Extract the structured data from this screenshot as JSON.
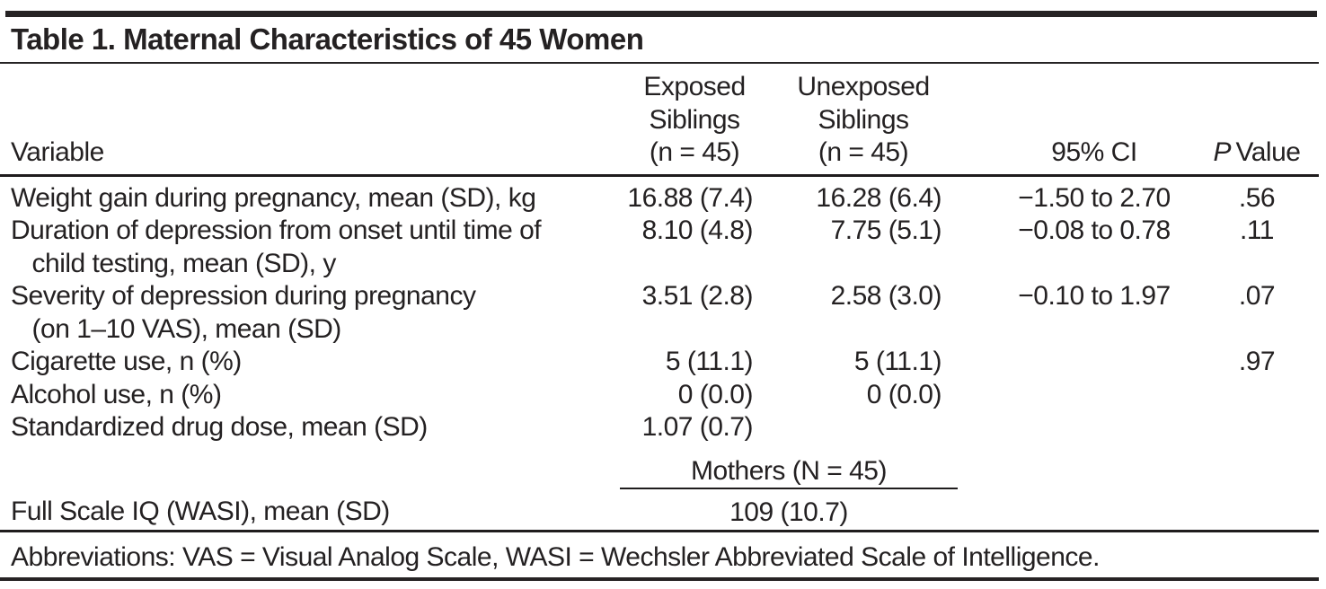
{
  "meta": {
    "title": "Table 1. Maternal Characteristics of 45 Women"
  },
  "colors": {
    "background": "#ffffff",
    "text": "#242122",
    "rule": "#262324"
  },
  "table": {
    "header": {
      "variable": "Variable",
      "exposed": "Exposed\nSiblings\n(n = 45)",
      "unexposed": "Unexposed\nSiblings\n(n = 45)",
      "ci": "95% CI",
      "p_italic": "P",
      "p_rest": "Value"
    },
    "rows": [
      {
        "variable": "Weight gain during pregnancy, mean (SD), kg",
        "exposed": "16.88 (7.4)",
        "unexposed": "16.28 (6.4)",
        "ci": "−1.50 to 2.70",
        "p": ".56"
      },
      {
        "variable": "Duration of depression from onset until time of\n   child testing, mean (SD), y",
        "exposed": "8.10 (4.8)",
        "unexposed": "7.75 (5.1)",
        "ci": "−0.08 to 0.78",
        "p": ".11"
      },
      {
        "variable": "Severity of depression during pregnancy\n   (on 1–10 VAS), mean (SD)",
        "exposed": "3.51 (2.8)",
        "unexposed": "2.58 (3.0)",
        "ci": "−0.10 to 1.97",
        "p": ".07"
      },
      {
        "variable": "Cigarette use, n (%)",
        "exposed": "5 (11.1)",
        "unexposed": "5 (11.1)",
        "ci": "",
        "p": ".97"
      },
      {
        "variable": "Alcohol use, n (%)",
        "exposed": "0 (0.0)",
        "unexposed": "0 (0.0)",
        "ci": "",
        "p": ""
      },
      {
        "variable": "Standardized drug dose, mean (SD)",
        "exposed": "1.07 (0.7)",
        "unexposed": "",
        "ci": "",
        "p": ""
      }
    ],
    "mothers_subheader": "Mothers (N = 45)",
    "iq_row": {
      "variable": "Full Scale IQ (WASI), mean (SD)",
      "value": "109 (10.7)"
    },
    "footnote": "Abbreviations: VAS = Visual Analog Scale, WASI = Wechsler Abbreviated Scale of Intelligence."
  }
}
